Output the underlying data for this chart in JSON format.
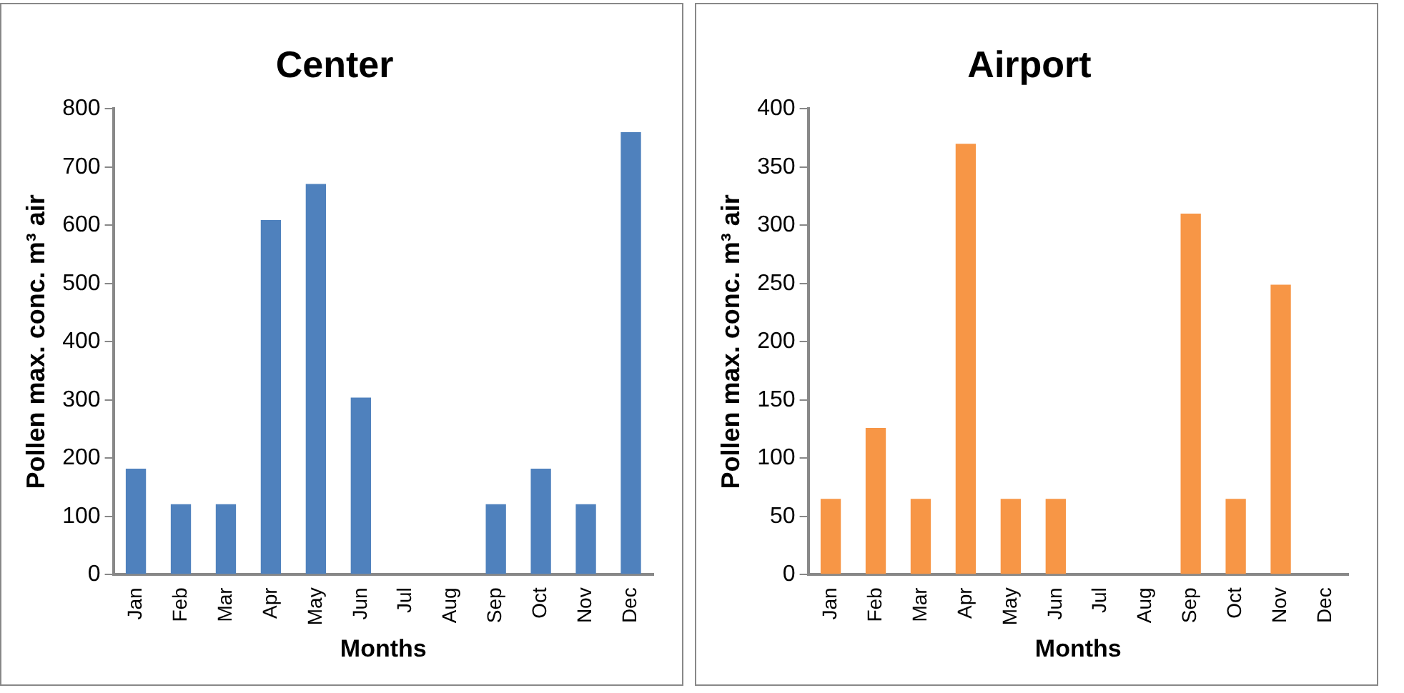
{
  "chart_data": [
    {
      "type": "bar",
      "title": "Center",
      "xlabel": "Months",
      "ylabel": "Pollen max. conc. m³ air",
      "categories": [
        "Jan",
        "Feb",
        "Mar",
        "Apr",
        "May",
        "Jun",
        "Jul",
        "Aug",
        "Sep",
        "Oct",
        "Nov",
        "Dec"
      ],
      "values": [
        182,
        121,
        121,
        609,
        671,
        304,
        0,
        0,
        121,
        182,
        121,
        760
      ],
      "color": "#4f81bd",
      "ylim": [
        0,
        800
      ],
      "yticks": [
        0,
        100,
        200,
        300,
        400,
        500,
        600,
        700,
        800
      ],
      "grid": false,
      "legend": false
    },
    {
      "type": "bar",
      "title": "Airport",
      "xlabel": "Months",
      "ylabel": "Pollen max. conc. m³ air",
      "categories": [
        "Jan",
        "Feb",
        "Mar",
        "Apr",
        "May",
        "Jun",
        "Jul",
        "Aug",
        "Sep",
        "Oct",
        "Nov",
        "Dec"
      ],
      "values": [
        65,
        126,
        65,
        370,
        65,
        65,
        0,
        0,
        310,
        65,
        249,
        0
      ],
      "color": "#f79646",
      "ylim": [
        0,
        400
      ],
      "yticks": [
        0,
        50,
        100,
        150,
        200,
        250,
        300,
        350,
        400
      ],
      "grid": false,
      "legend": false
    }
  ]
}
